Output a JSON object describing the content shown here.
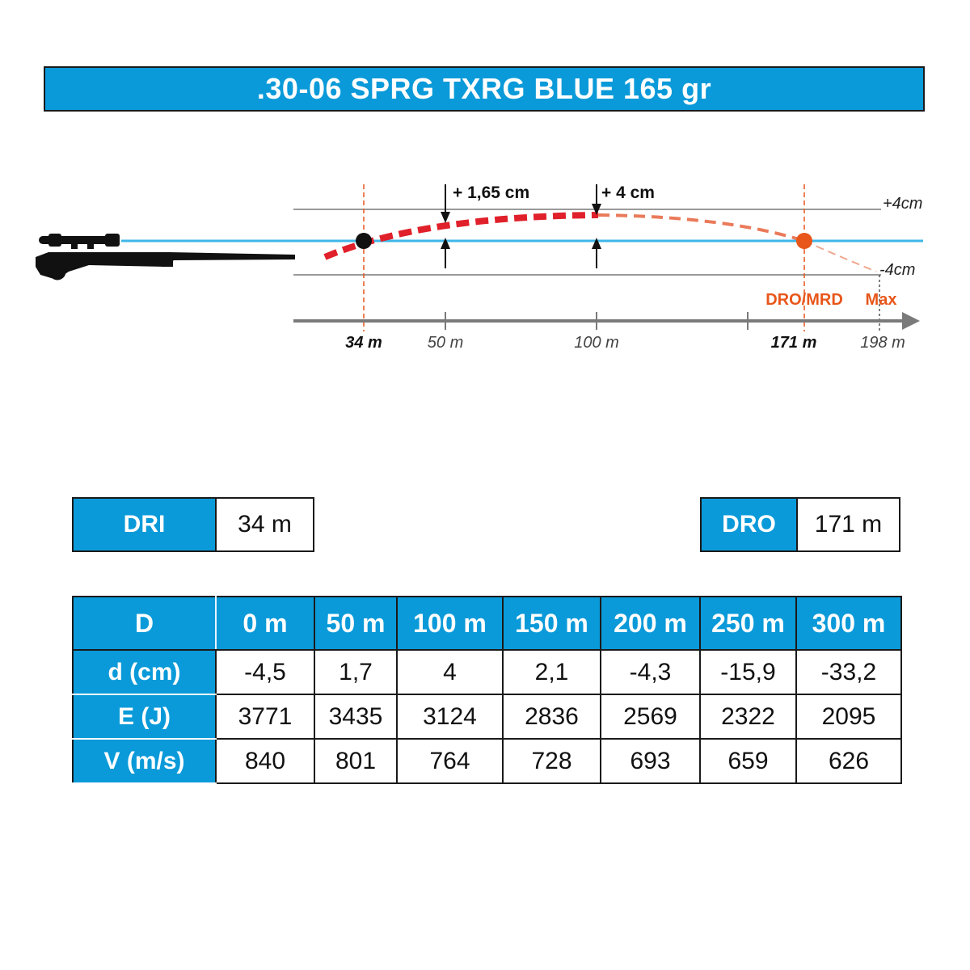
{
  "title": ".30-06 SPRG TXRG BLUE 165 gr",
  "diagram": {
    "plus_label": "+4cm",
    "minus_label": "-4cm",
    "rise_50_label": "+ 1,65 cm",
    "rise_100_label": "+ 4 cm",
    "dro_label": "DRO/MRD",
    "max_label": "Max",
    "axis": {
      "dri_tick": "34 m",
      "tick_50": "50 m",
      "tick_100": "100 m",
      "dro_tick": "171 m",
      "max_tick": "198 m"
    },
    "colors": {
      "accent": "#0a9ad9",
      "trajectory": "#e0202a",
      "orange": "#e8561a",
      "line_of_sight": "#3fb6e8"
    }
  },
  "dri": {
    "label": "DRI",
    "value": "34 m"
  },
  "dro": {
    "label": "DRO",
    "value": "171 m"
  },
  "table": {
    "header": [
      "D",
      "0 m",
      "50 m",
      "100 m",
      "150 m",
      "200 m",
      "250 m",
      "300 m"
    ],
    "rows": [
      {
        "label": "d (cm)",
        "values": [
          "-4,5",
          "1,7",
          "4",
          "2,1",
          "-4,3",
          "-15,9",
          "-33,2"
        ]
      },
      {
        "label": "E (J)",
        "values": [
          "3771",
          "3435",
          "3124",
          "2836",
          "2569",
          "2322",
          "2095"
        ]
      },
      {
        "label": "V (m/s)",
        "values": [
          "840",
          "801",
          "764",
          "728",
          "693",
          "659",
          "626"
        ]
      }
    ]
  }
}
